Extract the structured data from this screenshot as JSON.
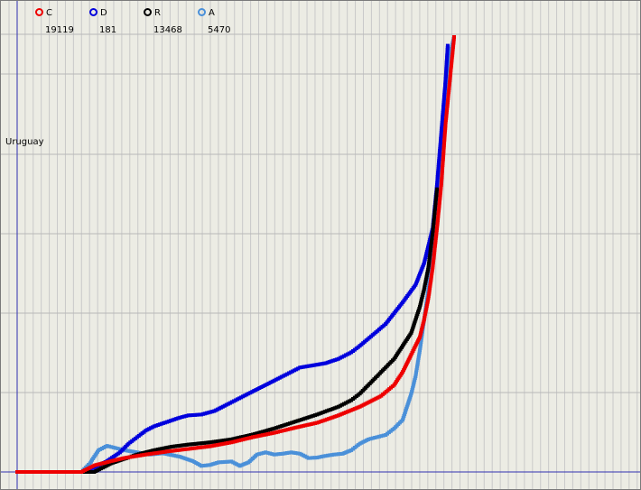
{
  "country": "Uruguay",
  "legend": [
    {
      "key": "C",
      "value": "19119",
      "color": "#ee0000"
    },
    {
      "key": "D",
      "value": "181",
      "color": "#0000dd"
    },
    {
      "key": "R",
      "value": "13468",
      "color": "#000000"
    },
    {
      "key": "A",
      "value": "5470",
      "color": "#4a90d9"
    }
  ],
  "chart_data": {
    "type": "scatter",
    "title": "",
    "xlabel": "",
    "ylabel": "",
    "grid": true,
    "legend_position": "top-left",
    "xlim": [
      0,
      100
    ],
    "ylim": [
      0,
      100
    ],
    "series": [
      {
        "name": "C",
        "color": "#ee0000",
        "points": [
          [
            0,
            0
          ],
          [
            15,
            0
          ],
          [
            18,
            1.5
          ],
          [
            22,
            2.5
          ],
          [
            25,
            3.2
          ],
          [
            30,
            4
          ],
          [
            35,
            4.7
          ],
          [
            40,
            5.3
          ],
          [
            45,
            5.9
          ],
          [
            50,
            6.8
          ],
          [
            55,
            8
          ],
          [
            60,
            9
          ],
          [
            65,
            10.2
          ],
          [
            70,
            11.3
          ],
          [
            75,
            13
          ],
          [
            80,
            15
          ],
          [
            85,
            17.5
          ],
          [
            88,
            20
          ],
          [
            90,
            23
          ],
          [
            92,
            27
          ],
          [
            94,
            31
          ],
          [
            95,
            35
          ],
          [
            96,
            40
          ],
          [
            97,
            47
          ],
          [
            98,
            56
          ],
          [
            99,
            66
          ],
          [
            100,
            80
          ],
          [
            101,
            90
          ],
          [
            102,
            100
          ]
        ]
      },
      {
        "name": "D",
        "color": "#0000dd",
        "points": [
          [
            0,
            0
          ],
          [
            15,
            0
          ],
          [
            18,
            1
          ],
          [
            21,
            2.5
          ],
          [
            24,
            4.5
          ],
          [
            26,
            6.5
          ],
          [
            28,
            8
          ],
          [
            30,
            9.5
          ],
          [
            32,
            10.5
          ],
          [
            35,
            11.5
          ],
          [
            38,
            12.5
          ],
          [
            40,
            13
          ],
          [
            43,
            13.2
          ],
          [
            46,
            14
          ],
          [
            48,
            15
          ],
          [
            51,
            16.5
          ],
          [
            54,
            18
          ],
          [
            57,
            19.5
          ],
          [
            60,
            21
          ],
          [
            63,
            22.5
          ],
          [
            66,
            24
          ],
          [
            69,
            24.5
          ],
          [
            72,
            25
          ],
          [
            75,
            26
          ],
          [
            78,
            27.5
          ],
          [
            80,
            29
          ],
          [
            83,
            31.5
          ],
          [
            86,
            34
          ],
          [
            88,
            36.5
          ],
          [
            90,
            39
          ],
          [
            93,
            43
          ],
          [
            95,
            48
          ],
          [
            97,
            56
          ],
          [
            98,
            66
          ],
          [
            99,
            78
          ],
          [
            100,
            90
          ],
          [
            100.5,
            98
          ]
        ]
      },
      {
        "name": "R",
        "color": "#000000",
        "points": [
          [
            0,
            0
          ],
          [
            18,
            0
          ],
          [
            20,
            1
          ],
          [
            22,
            2
          ],
          [
            25,
            3
          ],
          [
            28,
            4
          ],
          [
            32,
            5
          ],
          [
            36,
            5.8
          ],
          [
            40,
            6.3
          ],
          [
            45,
            6.8
          ],
          [
            50,
            7.5
          ],
          [
            55,
            8.6
          ],
          [
            60,
            10
          ],
          [
            65,
            11.6
          ],
          [
            70,
            13.2
          ],
          [
            75,
            15
          ],
          [
            78,
            16.5
          ],
          [
            80,
            18
          ],
          [
            82,
            20
          ],
          [
            85,
            23
          ],
          [
            88,
            26
          ],
          [
            90,
            29
          ],
          [
            92,
            32
          ],
          [
            93,
            35
          ],
          [
            94,
            38
          ],
          [
            95,
            42
          ],
          [
            96,
            47
          ],
          [
            97,
            55
          ],
          [
            98,
            65
          ]
        ]
      },
      {
        "name": "A",
        "color": "#4a90d9",
        "points": [
          [
            0,
            0
          ],
          [
            15,
            0
          ],
          [
            17,
            2
          ],
          [
            19,
            5
          ],
          [
            21,
            6
          ],
          [
            23,
            5.5
          ],
          [
            25,
            5
          ],
          [
            28,
            4.5
          ],
          [
            31,
            4
          ],
          [
            34,
            4.3
          ],
          [
            38,
            3.5
          ],
          [
            41,
            2.5
          ],
          [
            43,
            1.4
          ],
          [
            45,
            1.6
          ],
          [
            47,
            2.2
          ],
          [
            50,
            2.4
          ],
          [
            52,
            1.4
          ],
          [
            54,
            2.2
          ],
          [
            56,
            4
          ],
          [
            58,
            4.5
          ],
          [
            60,
            4
          ],
          [
            62,
            4.2
          ],
          [
            64,
            4.5
          ],
          [
            66,
            4.2
          ],
          [
            68,
            3.2
          ],
          [
            70,
            3.3
          ],
          [
            72,
            3.7
          ],
          [
            74,
            4
          ],
          [
            76,
            4.2
          ],
          [
            78,
            5
          ],
          [
            80,
            6.5
          ],
          [
            82,
            7.5
          ],
          [
            84,
            8
          ],
          [
            86,
            8.5
          ],
          [
            88,
            10
          ],
          [
            90,
            12
          ],
          [
            91,
            15
          ],
          [
            92,
            18
          ],
          [
            93,
            22
          ],
          [
            94,
            28
          ],
          [
            95,
            35
          ],
          [
            96,
            42
          ],
          [
            97,
            50
          ],
          [
            98,
            60
          ],
          [
            99,
            72
          ],
          [
            100,
            85
          ],
          [
            101,
            96
          ],
          [
            102,
            100
          ]
        ]
      }
    ]
  }
}
